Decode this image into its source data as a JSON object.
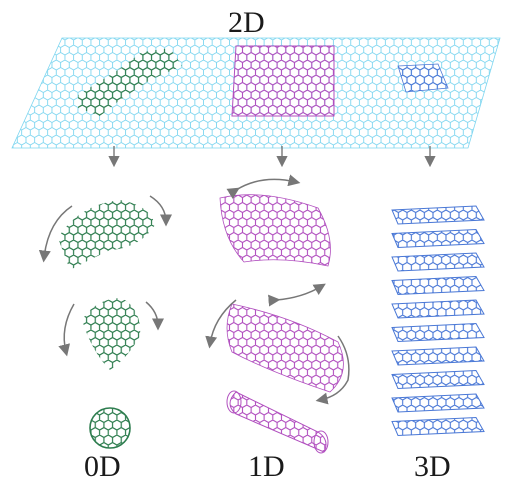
{
  "labels": {
    "top": "2D",
    "col1": "0D",
    "col2": "1D",
    "col3": "3D"
  },
  "colors": {
    "sheet": "#7fd6f0",
    "fullerene": "#2e7d4f",
    "nanotube": "#b14fbf",
    "graphite": "#4a78d6",
    "arrow": "#777777"
  }
}
